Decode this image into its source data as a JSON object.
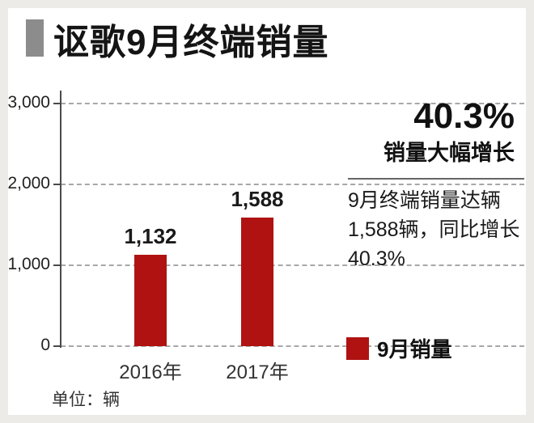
{
  "title": "讴歌9月终端销量",
  "highlight": {
    "percent": "40.3%",
    "subtitle": "销量大幅增长",
    "description": "9月终端销量达辆1,588辆，同比增长40.3%"
  },
  "legend": {
    "label": "9月销量",
    "color": "#b01212"
  },
  "unit_note": "单位：辆",
  "colors": {
    "accent_gray": "#8c8c8c",
    "bar_red": "#b01212",
    "grid_gray": "#a8a8a8"
  },
  "chart_data": {
    "type": "bar",
    "title": "讴歌9月终端销量",
    "categories": [
      "2016年",
      "2017年"
    ],
    "values": [
      1132,
      1588
    ],
    "value_labels": [
      "1,132",
      "1,588"
    ],
    "xlabel": "",
    "ylabel": "辆",
    "ylim": [
      0,
      3000
    ],
    "yticks": [
      0,
      1000,
      2000,
      3000
    ],
    "ytick_labels": [
      "0",
      "1,000",
      "2,000",
      "3,000"
    ],
    "grid": "horizontal-dashed",
    "bar_color": "#b01212",
    "legend_position": "bottom-right",
    "legend_entries": [
      "9月销量"
    ],
    "annotations": [
      "40.3%",
      "销量大幅增长",
      "9月终端销量达辆1,588辆，同比增长40.3%",
      "单位：辆"
    ]
  }
}
